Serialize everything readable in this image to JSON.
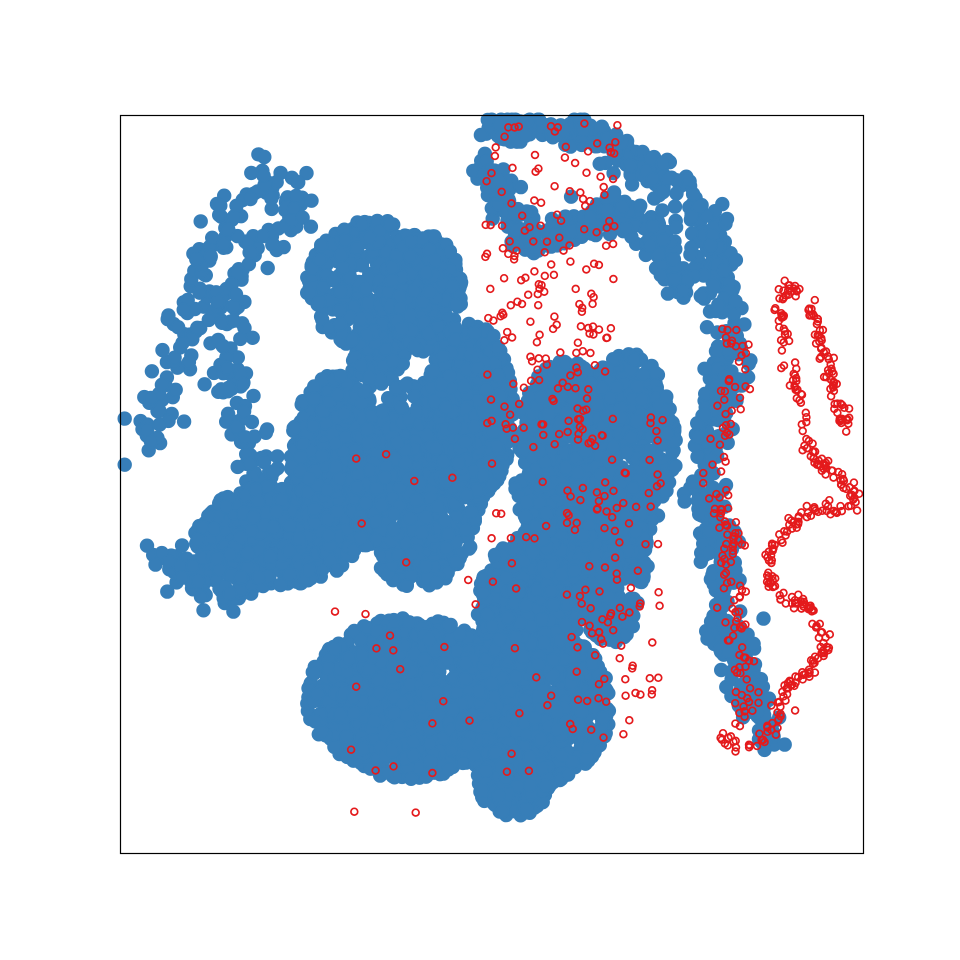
{
  "chart_data": {
    "type": "scatter",
    "title": "",
    "xlabel": "",
    "ylabel": "",
    "xlim": [
      0,
      100
    ],
    "ylim": [
      0,
      100
    ],
    "grid": false,
    "legend": "none",
    "ticks": "none",
    "series": [
      {
        "color": "#377eb8",
        "marker": "filled-circle",
        "clusters": [
          {
            "kind": "path",
            "count": 340,
            "width": 3.2,
            "path": [
              [
                2,
                56
              ],
              [
                3,
                58
              ],
              [
                5,
                60
              ],
              [
                7,
                64
              ],
              [
                8,
                70
              ],
              [
                10,
                76
              ],
              [
                12,
                82
              ],
              [
                16,
                88
              ],
              [
                20,
                92
              ],
              [
                24,
                90
              ],
              [
                22,
                85
              ],
              [
                17,
                80
              ],
              [
                15,
                72
              ],
              [
                14,
                65
              ],
              [
                16,
                58
              ],
              [
                19,
                52
              ],
              [
                22,
                48
              ],
              [
                26,
                46
              ],
              [
                30,
                48
              ],
              [
                33,
                52
              ],
              [
                35,
                57
              ]
            ]
          },
          {
            "kind": "path",
            "count": 420,
            "width": 3.5,
            "path": [
              [
                6,
                40
              ],
              [
                10,
                37
              ],
              [
                15,
                36
              ],
              [
                20,
                39
              ],
              [
                22,
                44
              ],
              [
                24,
                48
              ],
              [
                26,
                53
              ],
              [
                29,
                58
              ],
              [
                32,
                63
              ],
              [
                35,
                67
              ],
              [
                36,
                72
              ],
              [
                37,
                76
              ]
            ]
          },
          {
            "kind": "blob",
            "count": 500,
            "cx": 21,
            "cy": 43,
            "rx": 11,
            "ry": 7
          },
          {
            "kind": "blob",
            "count": 380,
            "cx": 29,
            "cy": 55,
            "rx": 6,
            "ry": 10
          },
          {
            "kind": "blob",
            "count": 420,
            "cx": 34,
            "cy": 77,
            "rx": 9,
            "ry": 9
          },
          {
            "kind": "blob",
            "count": 380,
            "cx": 41,
            "cy": 76,
            "rx": 5,
            "ry": 8
          },
          {
            "kind": "blob",
            "count": 750,
            "cx": 40,
            "cy": 50,
            "rx": 9,
            "ry": 14
          },
          {
            "kind": "blob",
            "count": 650,
            "cx": 47,
            "cy": 60,
            "rx": 6,
            "ry": 12
          },
          {
            "kind": "blob",
            "count": 1100,
            "cx": 39,
            "cy": 21,
            "rx": 14,
            "ry": 11
          },
          {
            "kind": "blob",
            "count": 950,
            "cx": 55,
            "cy": 20,
            "rx": 11,
            "ry": 11
          },
          {
            "kind": "blob",
            "count": 500,
            "cx": 55,
            "cy": 34,
            "rx": 7,
            "ry": 9
          },
          {
            "kind": "blob",
            "count": 650,
            "cx": 60,
            "cy": 52,
            "rx": 7,
            "ry": 15
          },
          {
            "kind": "blob",
            "count": 420,
            "cx": 68,
            "cy": 55,
            "rx": 7,
            "ry": 13
          },
          {
            "kind": "blob",
            "count": 380,
            "cx": 66,
            "cy": 40,
            "rx": 5,
            "ry": 12
          },
          {
            "kind": "blob",
            "count": 260,
            "cx": 53,
            "cy": 10,
            "rx": 5,
            "ry": 5
          },
          {
            "kind": "path",
            "count": 620,
            "width": 3.0,
            "path": [
              [
                50,
                98
              ],
              [
                54,
                99
              ],
              [
                58,
                98.5
              ],
              [
                62,
                97.5
              ],
              [
                66,
                96
              ],
              [
                70,
                94
              ],
              [
                74,
                91
              ],
              [
                77,
                88
              ],
              [
                79,
                84
              ],
              [
                80,
                80
              ],
              [
                81,
                76
              ],
              [
                82,
                72
              ],
              [
                82,
                68
              ],
              [
                81,
                64
              ],
              [
                80,
                60
              ],
              [
                79,
                56
              ],
              [
                79,
                52
              ],
              [
                79,
                48
              ],
              [
                80,
                44
              ],
              [
                81,
                40
              ],
              [
                81,
                36
              ],
              [
                81,
                32
              ],
              [
                82,
                29
              ],
              [
                83,
                27
              ],
              [
                84,
                24
              ],
              [
                85,
                22
              ],
              [
                86,
                19
              ],
              [
                87,
                17
              ],
              [
                88,
                15
              ]
            ]
          },
          {
            "kind": "path",
            "count": 280,
            "width": 2.4,
            "path": [
              [
                49,
                94
              ],
              [
                51,
                90
              ],
              [
                53,
                85
              ],
              [
                56,
                83
              ],
              [
                60,
                84
              ],
              [
                64,
                86
              ],
              [
                68,
                87
              ],
              [
                72,
                84
              ],
              [
                74,
                80
              ],
              [
                76,
                76
              ]
            ]
          }
        ]
      },
      {
        "color": "#e41a1c",
        "marker": "open-circle",
        "clusters": [
          {
            "kind": "path",
            "count": 360,
            "width": 1.0,
            "path": [
              [
                98,
                57
              ],
              [
                97,
                60
              ],
              [
                96,
                63
              ],
              [
                95,
                67
              ],
              [
                94,
                71
              ],
              [
                93,
                74
              ],
              [
                92,
                76
              ],
              [
                90,
                77
              ],
              [
                89,
                75
              ],
              [
                89,
                71
              ],
              [
                90,
                67
              ],
              [
                91,
                63
              ],
              [
                92,
                59
              ],
              [
                92,
                56
              ],
              [
                94,
                53
              ],
              [
                97,
                51
              ],
              [
                99,
                49
              ],
              [
                98,
                46
              ],
              [
                95,
                47
              ],
              [
                92,
                46
              ],
              [
                90,
                44
              ],
              [
                88,
                42
              ],
              [
                87,
                39
              ],
              [
                88,
                35
              ],
              [
                92,
                34
              ],
              [
                94,
                31
              ],
              [
                95,
                28
              ],
              [
                93,
                25
              ],
              [
                90,
                23
              ],
              [
                89,
                20
              ],
              [
                88,
                17
              ],
              [
                86,
                15
              ],
              [
                83,
                14
              ],
              [
                81,
                16
              ]
            ]
          },
          {
            "kind": "path",
            "count": 130,
            "width": 2.4,
            "path": [
              [
                84,
                18
              ],
              [
                84,
                24
              ],
              [
                83,
                30
              ],
              [
                82,
                36
              ],
              [
                82,
                42
              ],
              [
                81,
                48
              ],
              [
                81,
                54
              ],
              [
                82,
                60
              ],
              [
                83,
                66
              ],
              [
                83,
                72
              ]
            ]
          },
          {
            "kind": "scatter",
            "count": 180,
            "x": [
              49,
              67
            ],
            "y": [
              55,
              99
            ]
          },
          {
            "kind": "scatter",
            "count": 110,
            "x": [
              60,
              73
            ],
            "y": [
              15,
              60
            ]
          },
          {
            "kind": "scatter",
            "count": 45,
            "x": [
              27,
              58
            ],
            "y": [
              4,
              55
            ]
          }
        ]
      }
    ]
  }
}
